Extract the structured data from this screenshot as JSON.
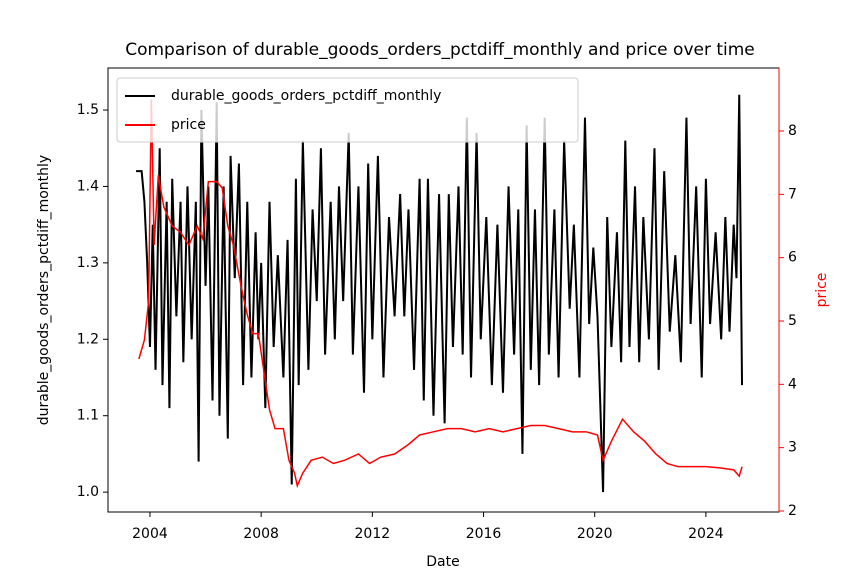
{
  "chart_data": {
    "type": "line",
    "title": "Comparison of durable_goods_orders_pctdiff_monthly and price over time",
    "xlabel": "Date",
    "ylabel": "durable_goods_orders_pctdiff_monthly",
    "y2label": "price",
    "xlim": [
      2002.49,
      2026.63
    ],
    "xticks": [
      2004,
      2008,
      2012,
      2016,
      2020,
      2024
    ],
    "ylim": [
      0.974,
      1.555
    ],
    "yticks": [
      {
        "value": 1,
        "label": "1.0"
      },
      1.1,
      1.2,
      1.3,
      1.4,
      1.5
    ],
    "y2lim": [
      1.984,
      8.995
    ],
    "y2ticks": [
      2,
      3,
      4,
      5,
      6,
      7,
      8
    ],
    "legend": "upper left",
    "series": [
      {
        "name": "durable_goods_orders_pctdiff_monthly",
        "color": "#000000",
        "x": [
          2003.5,
          2003.7,
          2003.8,
          2003.9,
          2004.0,
          2004.1,
          2004.2,
          2004.35,
          2004.45,
          2004.6,
          2004.7,
          2004.8,
          2004.95,
          2005.1,
          2005.2,
          2005.35,
          2005.5,
          2005.65,
          2005.75,
          2005.85,
          2006.0,
          2006.1,
          2006.25,
          2006.4,
          2006.5,
          2006.65,
          2006.8,
          2006.9,
          2007.05,
          2007.2,
          2007.35,
          2007.5,
          2007.65,
          2007.8,
          2007.9,
          2008.0,
          2008.15,
          2008.3,
          2008.45,
          2008.6,
          2008.8,
          2008.95,
          2009.1,
          2009.25,
          2009.35,
          2009.5,
          2009.7,
          2009.85,
          2010.0,
          2010.15,
          2010.3,
          2010.5,
          2010.65,
          2010.8,
          2010.95,
          2011.15,
          2011.3,
          2011.5,
          2011.7,
          2011.85,
          2012.0,
          2012.2,
          2012.4,
          2012.6,
          2012.8,
          2013.0,
          2013.15,
          2013.3,
          2013.5,
          2013.7,
          2013.85,
          2014.0,
          2014.2,
          2014.4,
          2014.6,
          2014.75,
          2014.9,
          2015.1,
          2015.25,
          2015.4,
          2015.55,
          2015.75,
          2015.9,
          2016.1,
          2016.3,
          2016.5,
          2016.7,
          2016.9,
          2017.1,
          2017.25,
          2017.4,
          2017.55,
          2017.7,
          2017.85,
          2018.0,
          2018.2,
          2018.35,
          2018.55,
          2018.7,
          2018.9,
          2019.1,
          2019.25,
          2019.45,
          2019.65,
          2019.8,
          2019.95,
          2020.1,
          2020.3,
          2020.45,
          2020.6,
          2020.8,
          2020.95,
          2021.1,
          2021.25,
          2021.45,
          2021.6,
          2021.75,
          2021.95,
          2022.15,
          2022.3,
          2022.5,
          2022.7,
          2022.9,
          2023.1,
          2023.3,
          2023.45,
          2023.65,
          2023.85,
          2024.0,
          2024.15,
          2024.35,
          2024.55,
          2024.7,
          2024.85,
          2025.0,
          2025.1,
          2025.2,
          2025.3
        ],
        "values": [
          1.42,
          1.42,
          1.38,
          1.3,
          1.19,
          1.35,
          1.16,
          1.45,
          1.14,
          1.38,
          1.11,
          1.41,
          1.23,
          1.38,
          1.17,
          1.4,
          1.2,
          1.38,
          1.04,
          1.5,
          1.27,
          1.4,
          1.12,
          1.51,
          1.1,
          1.4,
          1.07,
          1.44,
          1.28,
          1.43,
          1.14,
          1.38,
          1.15,
          1.34,
          1.2,
          1.3,
          1.11,
          1.38,
          1.19,
          1.31,
          1.15,
          1.33,
          1.01,
          1.41,
          1.14,
          1.46,
          1.16,
          1.37,
          1.25,
          1.45,
          1.18,
          1.38,
          1.2,
          1.4,
          1.25,
          1.47,
          1.18,
          1.4,
          1.13,
          1.43,
          1.2,
          1.44,
          1.15,
          1.36,
          1.23,
          1.39,
          1.23,
          1.37,
          1.16,
          1.41,
          1.12,
          1.41,
          1.1,
          1.39,
          1.09,
          1.39,
          1.19,
          1.4,
          1.18,
          1.49,
          1.15,
          1.47,
          1.2,
          1.36,
          1.14,
          1.35,
          1.13,
          1.4,
          1.18,
          1.37,
          1.05,
          1.48,
          1.16,
          1.37,
          1.14,
          1.49,
          1.18,
          1.37,
          1.15,
          1.46,
          1.24,
          1.35,
          1.15,
          1.49,
          1.22,
          1.32,
          1.23,
          1.0,
          1.36,
          1.19,
          1.34,
          1.17,
          1.46,
          1.19,
          1.4,
          1.17,
          1.36,
          1.2,
          1.45,
          1.16,
          1.42,
          1.21,
          1.31,
          1.17,
          1.49,
          1.22,
          1.4,
          1.15,
          1.41,
          1.22,
          1.34,
          1.2,
          1.36,
          1.21,
          1.35,
          1.28,
          1.52,
          1.14
        ]
      },
      {
        "name": "price",
        "color": "#ff0000",
        "axis": "y2",
        "x": [
          2003.6,
          2003.8,
          2003.95,
          2004.05,
          2004.15,
          2004.3,
          2004.5,
          2004.8,
          2005.1,
          2005.4,
          2005.7,
          2005.9,
          2006.1,
          2006.4,
          2006.6,
          2006.8,
          2007.0,
          2007.3,
          2007.5,
          2007.7,
          2007.9,
          2008.1,
          2008.3,
          2008.5,
          2008.8,
          2009.0,
          2009.2,
          2009.3,
          2009.5,
          2009.8,
          2010.2,
          2010.6,
          2011.0,
          2011.5,
          2011.9,
          2012.3,
          2012.8,
          2013.3,
          2013.7,
          2014.2,
          2014.7,
          2015.2,
          2015.7,
          2016.2,
          2016.7,
          2017.2,
          2017.7,
          2018.2,
          2018.7,
          2019.2,
          2019.7,
          2020.1,
          2020.3,
          2020.6,
          2021.0,
          2021.4,
          2021.8,
          2022.2,
          2022.6,
          2023.0,
          2023.5,
          2024.0,
          2024.5,
          2025.0,
          2025.2,
          2025.3
        ],
        "values": [
          4.4,
          4.7,
          5.3,
          8.5,
          6.2,
          7.3,
          6.8,
          6.5,
          6.4,
          6.2,
          6.5,
          6.3,
          7.2,
          7.2,
          7.1,
          6.5,
          6.2,
          5.5,
          5.1,
          4.8,
          4.8,
          4.2,
          3.6,
          3.3,
          3.3,
          2.8,
          2.6,
          2.4,
          2.6,
          2.8,
          2.85,
          2.75,
          2.8,
          2.9,
          2.75,
          2.85,
          2.9,
          3.05,
          3.2,
          3.25,
          3.3,
          3.3,
          3.25,
          3.3,
          3.25,
          3.3,
          3.35,
          3.35,
          3.3,
          3.25,
          3.25,
          3.2,
          2.8,
          3.1,
          3.45,
          3.25,
          3.1,
          2.9,
          2.75,
          2.7,
          2.7,
          2.7,
          2.68,
          2.65,
          2.55,
          2.7
        ]
      }
    ]
  }
}
